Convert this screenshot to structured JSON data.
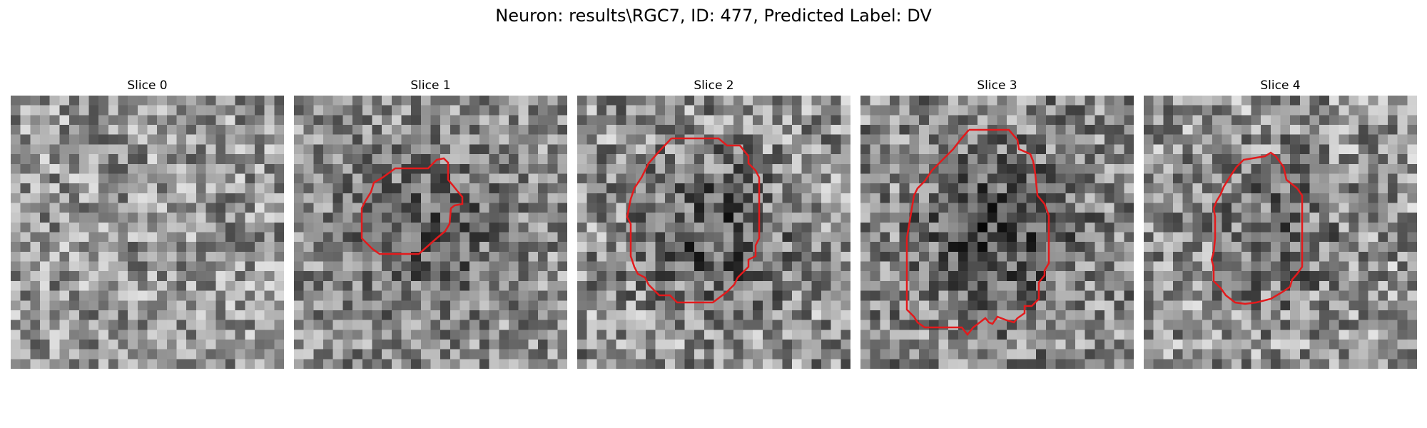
{
  "figure": {
    "title": "Neuron: results\\RGC7, ID: 477, Predicted Label: DV"
  },
  "panels": [
    {
      "title": "Slice 0",
      "has_contour": false
    },
    {
      "title": "Slice 1",
      "has_contour": true
    },
    {
      "title": "Slice 2",
      "has_contour": true
    },
    {
      "title": "Slice 3",
      "has_contour": true
    },
    {
      "title": "Slice 4",
      "has_contour": true
    }
  ],
  "style": {
    "contour_color": "#e31a1c",
    "colormap": "gray"
  }
}
